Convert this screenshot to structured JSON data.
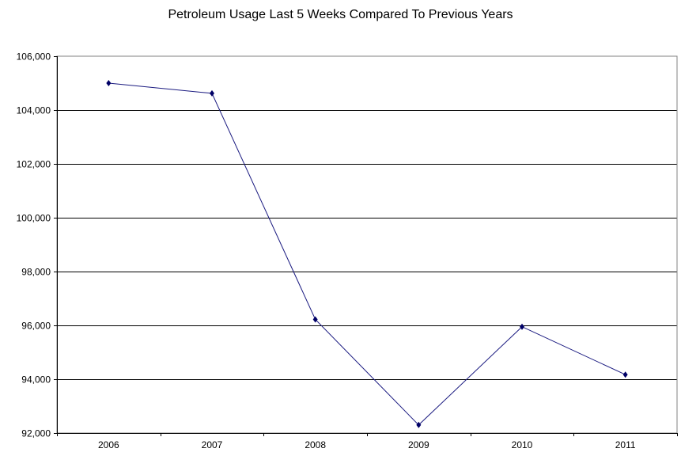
{
  "chart_data": {
    "type": "line",
    "title": "Petroleum Usage Last 5 Weeks Compared To Previous Years",
    "xlabel": "",
    "ylabel": "",
    "categories": [
      "2006",
      "2007",
      "2008",
      "2009",
      "2010",
      "2011"
    ],
    "series": [
      {
        "values": [
          105000,
          104620,
          96220,
          92300,
          95950,
          94170
        ],
        "color": "#1a1a80",
        "marker": "diamond",
        "marker_color": "#000066"
      }
    ],
    "ylim": [
      92000,
      106000
    ],
    "yticks": [
      92000,
      94000,
      96000,
      98000,
      100000,
      102000,
      104000,
      106000
    ],
    "ytick_labels": [
      "92,000",
      "94,000",
      "96,000",
      "98,000",
      "100,000",
      "102,000",
      "104,000",
      "106,000"
    ],
    "grid": true,
    "legend": "none"
  }
}
